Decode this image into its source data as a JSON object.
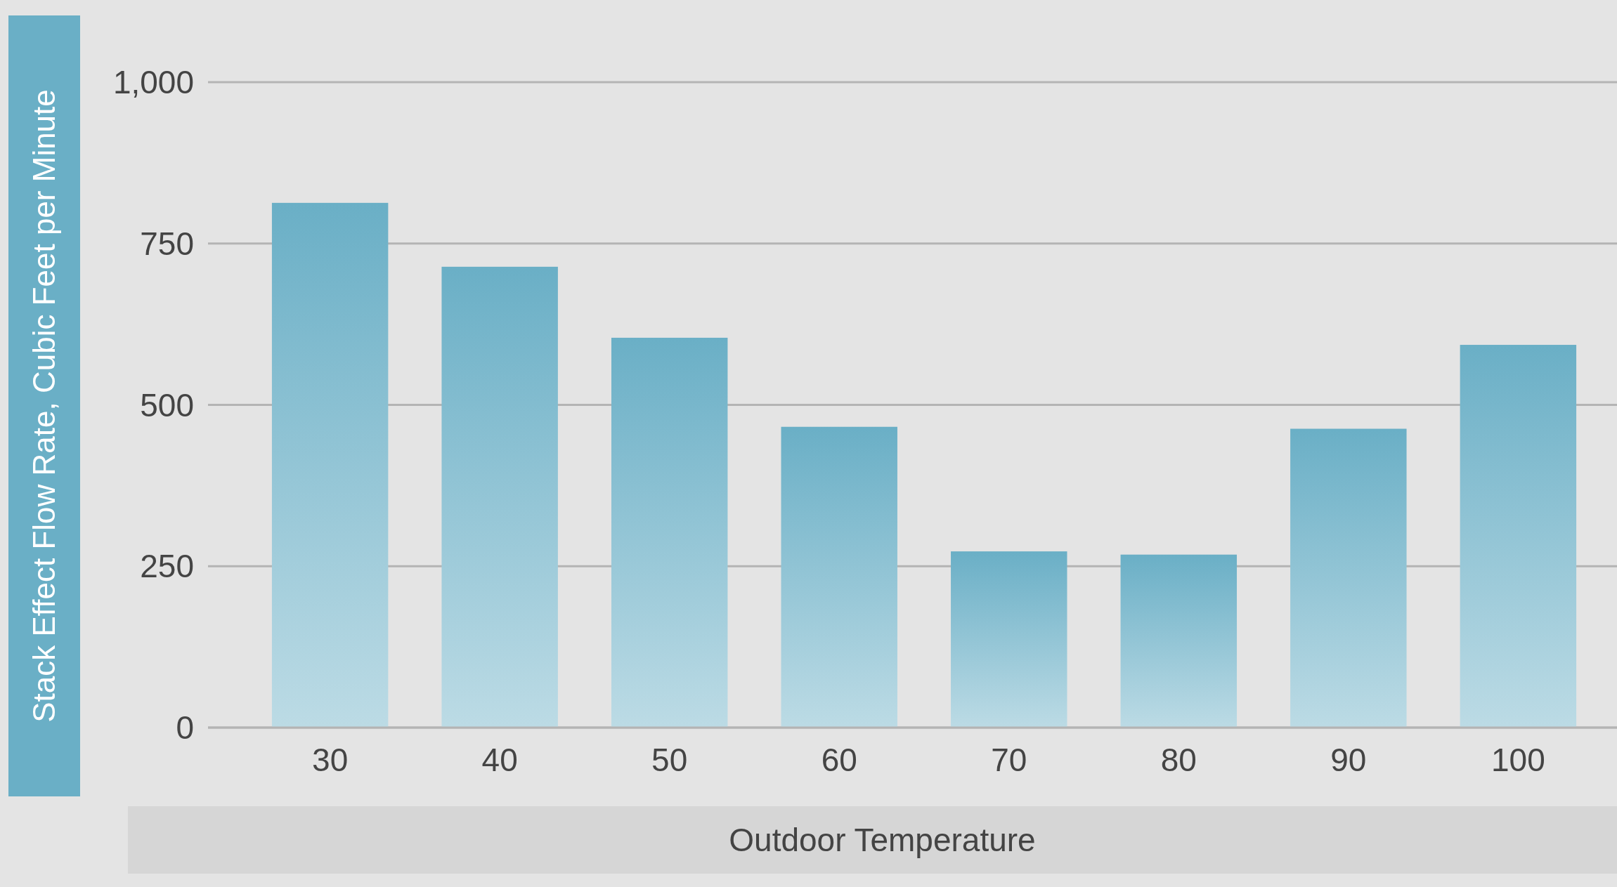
{
  "chart_data": {
    "type": "bar",
    "xlabel": "Outdoor Temperature",
    "ylabel": "Stack Effect Flow Rate, Cubic Feet per Minute",
    "categories": [
      "30",
      "40",
      "50",
      "60",
      "70",
      "80",
      "90",
      "100"
    ],
    "values": [
      813,
      714,
      604,
      466,
      273,
      268,
      463,
      593
    ],
    "color": "#6aafc6",
    "ylim": [
      0,
      1000
    ],
    "yticks": [
      0,
      250,
      500,
      750,
      {
        "value": 1000,
        "label": "1,000"
      }
    ],
    "grid": "y"
  }
}
